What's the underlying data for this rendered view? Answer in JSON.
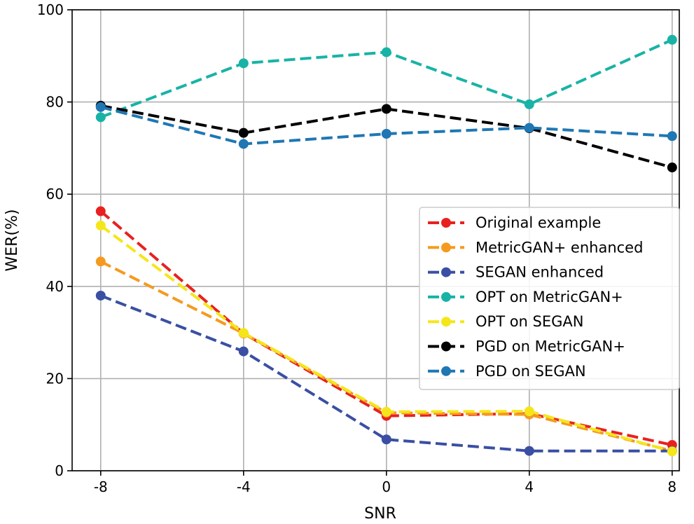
{
  "chart_data": {
    "type": "line",
    "title": "",
    "xlabel": "SNR",
    "ylabel": "WER(%)",
    "x": [
      -8,
      -4,
      0,
      4,
      8
    ],
    "x_tick_labels": [
      "-8",
      "-4",
      "0",
      "4",
      "8"
    ],
    "y_ticks": [
      0,
      20,
      40,
      60,
      80,
      100
    ],
    "y_tick_labels": [
      "0",
      "20",
      "40",
      "60",
      "80",
      "100"
    ],
    "xlim": [
      -8.8,
      8.2
    ],
    "ylim": [
      0,
      100
    ],
    "grid": true,
    "legend_position": "center-right",
    "series": [
      {
        "name": "Original example",
        "color": "#e8211f",
        "values": [
          56.3,
          29.8,
          11.9,
          12.4,
          5.6
        ]
      },
      {
        "name": "MetricGAN+ enhanced",
        "color": "#f59a1f",
        "values": [
          45.4,
          29.8,
          12.6,
          12.2,
          4.3
        ]
      },
      {
        "name": "SEGAN enhanced",
        "color": "#3a4fa3",
        "values": [
          38.0,
          25.9,
          6.8,
          4.3,
          4.3
        ]
      },
      {
        "name": "OPT on MetricGAN+",
        "color": "#18b3a6",
        "values": [
          76.7,
          88.4,
          90.8,
          79.5,
          93.5
        ]
      },
      {
        "name": "OPT on SEGAN",
        "color": "#f5e61a",
        "values": [
          53.2,
          29.9,
          12.8,
          12.9,
          4.2
        ]
      },
      {
        "name": "PGD on MetricGAN+",
        "color": "#000000",
        "values": [
          79.2,
          73.3,
          78.5,
          74.3,
          65.8
        ]
      },
      {
        "name": "PGD on SEGAN",
        "color": "#1f77b4",
        "values": [
          78.9,
          70.9,
          73.1,
          74.4,
          72.6
        ]
      }
    ]
  }
}
